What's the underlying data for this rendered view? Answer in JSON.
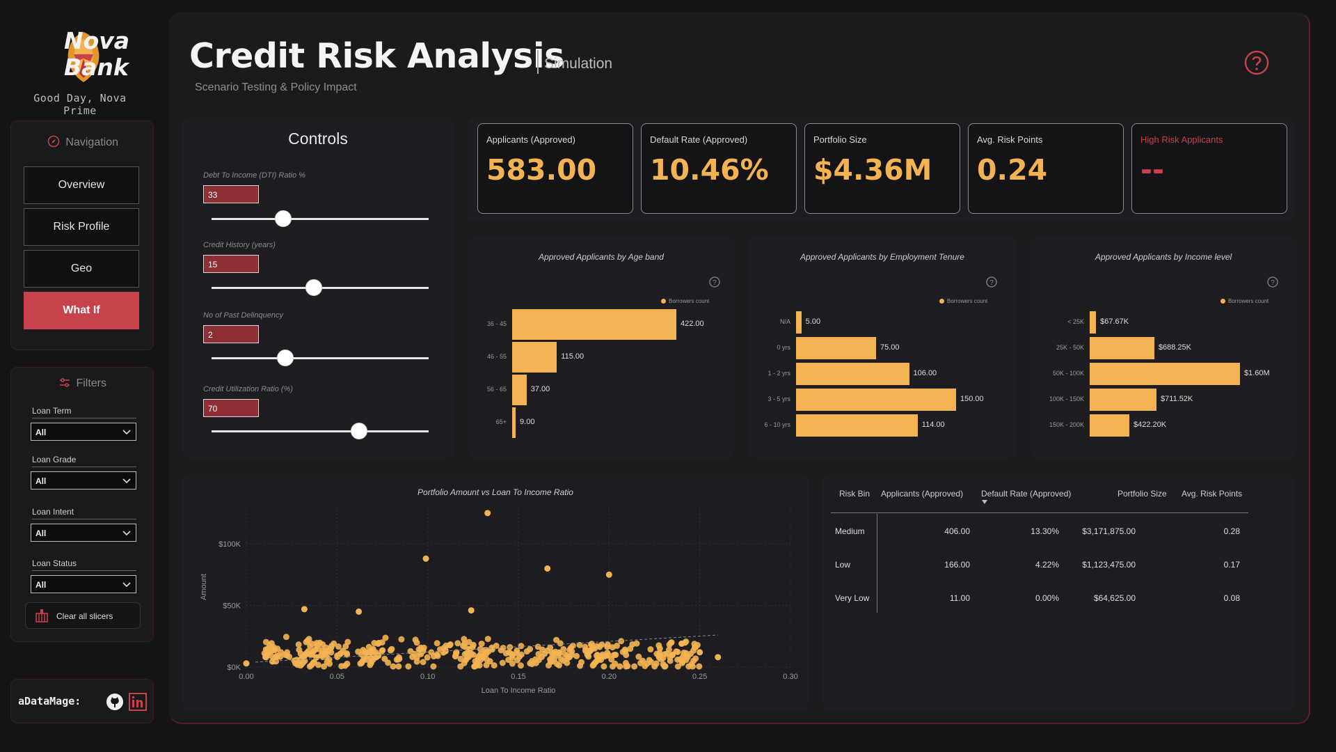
{
  "brand": {
    "line1": "Nova",
    "line2": "Bank",
    "greeting": "Good Day, Nova Prime"
  },
  "header": {
    "title": "Credit Risk Analysis",
    "subtitle_tag": "Simulation",
    "subtitle": "Scenario Testing & Policy Impact"
  },
  "navigation": {
    "title": "Navigation",
    "items": [
      {
        "label": "Overview",
        "active": false
      },
      {
        "label": "Risk Profile",
        "active": false
      },
      {
        "label": "Geo",
        "active": false
      },
      {
        "label": "What If",
        "active": true
      }
    ]
  },
  "filters": {
    "title": "Filters",
    "items": [
      {
        "label": "Loan Term",
        "value": "All"
      },
      {
        "label": "Loan Grade",
        "value": "All"
      },
      {
        "label": "Loan Intent",
        "value": "All"
      },
      {
        "label": "Loan Status",
        "value": "All"
      }
    ],
    "clear_label": "Clear all slicers"
  },
  "footer": {
    "handle": "aDataMage:"
  },
  "controls": {
    "title": "Controls",
    "sliders": [
      {
        "label": "Debt To Income (DTI) Ratio %",
        "value": "33",
        "level": 0.33
      },
      {
        "label": "Credit History (years)",
        "value": "15",
        "level": 0.47
      },
      {
        "label": "No of Past Delinquency",
        "value": "2",
        "level": 0.34
      },
      {
        "label": "Credit Utilization Ratio (%)",
        "value": "70",
        "level": 0.68
      }
    ]
  },
  "kpis": [
    {
      "label": "Applicants (Approved)",
      "value": "583.00"
    },
    {
      "label": "Default Rate (Approved)",
      "value": "10.46%"
    },
    {
      "label": "Portfolio Size",
      "value": "$4.36M"
    },
    {
      "label": "Avg. Risk Points",
      "value": "0.24"
    },
    {
      "label": "High Risk Applicants",
      "value": "--"
    }
  ],
  "legend_label": "Borrowers count",
  "chart_data": [
    {
      "type": "bar",
      "title": "Approved Applicants by Age band",
      "categories": [
        "36 - 45",
        "46 - 55",
        "56 - 65",
        "65+"
      ],
      "values": [
        422,
        115,
        37,
        9
      ],
      "labels": [
        "422.00",
        "115.00",
        "37.00",
        "9.00"
      ],
      "max": 422
    },
    {
      "type": "bar",
      "title": "Approved Applicants by Employment Tenure",
      "categories": [
        "N/A",
        "0 yrs",
        "1 - 2 yrs",
        "3 - 5 yrs",
        "6 - 10 yrs"
      ],
      "values": [
        5,
        75,
        106,
        150,
        114
      ],
      "labels": [
        "5.00",
        "75.00",
        "106.00",
        "150.00",
        "114.00"
      ],
      "max": 150
    },
    {
      "type": "bar",
      "title": "Approved Applicants by Income level",
      "categories": [
        "< 25K",
        "25K - 50K",
        "50K - 100K",
        "100K - 150K",
        "150K - 200K"
      ],
      "values": [
        67.67,
        688.25,
        1600,
        711.52,
        422.2
      ],
      "labels": [
        "$67.67K",
        "$688.25K",
        "$1.60M",
        "$711.52K",
        "$422.20K"
      ],
      "max": 1600
    },
    {
      "type": "scatter",
      "title": "Portfolio Amount vs Loan To Income Ratio",
      "xlabel": "Loan To Income Ratio",
      "ylabel": "Amount",
      "xlim": [
        0,
        0.3
      ],
      "ylim": [
        0,
        130000
      ],
      "x_ticks": [
        "0.00",
        "0.05",
        "0.10",
        "0.15",
        "0.20",
        "0.25",
        "0.30"
      ],
      "y_ticks": [
        {
          "v": 0,
          "label": "$0K"
        },
        {
          "v": 50000,
          "label": "$50K"
        },
        {
          "v": 100000,
          "label": "$100K"
        }
      ],
      "outliers": [
        [
          0.133,
          125000
        ],
        [
          0.099,
          88000
        ],
        [
          0.166,
          80000
        ],
        [
          0.2,
          75000
        ],
        [
          0.032,
          47000
        ],
        [
          0.062,
          45000
        ],
        [
          0.124,
          46000
        ],
        [
          0.0,
          3000
        ],
        [
          0.26,
          8000
        ],
        [
          0.25,
          12000
        ],
        [
          0.24,
          19000
        ],
        [
          0.235,
          10000
        ]
      ],
      "cluster": {
        "n": 420,
        "x_range": [
          0.01,
          0.25
        ],
        "y_mean": 12000,
        "y_spread": 14000
      }
    }
  ],
  "table": {
    "headers": [
      "Risk Bin",
      "Applicants (Approved)",
      "Default Rate (Approved)",
      "Portfolio Size",
      "Avg. Risk Points"
    ],
    "rows": [
      [
        "Medium",
        "406.00",
        "13.30%",
        "$3,171,875.00",
        "0.28"
      ],
      [
        "Low",
        "166.00",
        "4.22%",
        "$1,123,475.00",
        "0.17"
      ],
      [
        "Very Low",
        "11.00",
        "0.00%",
        "$64,625.00",
        "0.08"
      ]
    ]
  },
  "colors": {
    "accent": "#f3b352",
    "brand_red": "#c7424b",
    "bg": "#141416",
    "card": "#1e1e22"
  }
}
